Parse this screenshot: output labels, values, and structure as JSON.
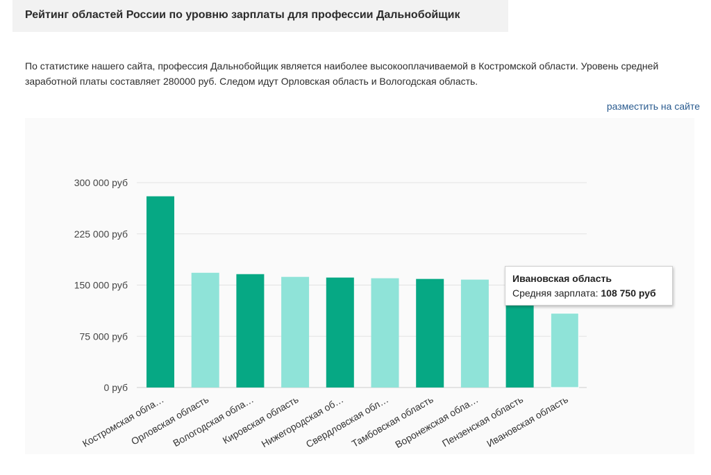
{
  "header": {
    "title": "Рейтинг областей России по уровню зарплаты для профессии Дальнобойщик"
  },
  "description": "По статистике нашего сайта, профессия Дальнобойщик является наиболее высокооплачиваемой в Костромской области. Уровень средней заработной платы составляет 280000 руб. Следом идут Орловская область и Вологодская область.",
  "embed_link": "разместить на сайте",
  "tooltip": {
    "title": "Ивановская область",
    "label": "Средняя зарплата:",
    "value": "108 750 руб"
  },
  "colors": {
    "dark": "#06a884",
    "light": "#8fe3d8"
  },
  "chart_data": {
    "type": "bar",
    "title": "",
    "xlabel": "",
    "ylabel": "",
    "ylim": [
      0,
      300000
    ],
    "yticks": [
      {
        "value": 0,
        "label": "0 руб"
      },
      {
        "value": 75000,
        "label": "75 000 руб"
      },
      {
        "value": 150000,
        "label": "150 000 руб"
      },
      {
        "value": 225000,
        "label": "225 000 руб"
      },
      {
        "value": 300000,
        "label": "300 000 руб"
      }
    ],
    "categories": [
      "Костромская обла…",
      "Орловская область",
      "Вологодская обла…",
      "Кировская область",
      "Нижегородская об…",
      "Свердловская обл…",
      "Тамбовская область",
      "Воронежская обла…",
      "Пензенская область",
      "Ивановская область"
    ],
    "values": [
      280000,
      168000,
      166000,
      162000,
      161000,
      160000,
      159000,
      158000,
      122000,
      108750
    ],
    "highlighted_index": 9,
    "grid": true
  }
}
